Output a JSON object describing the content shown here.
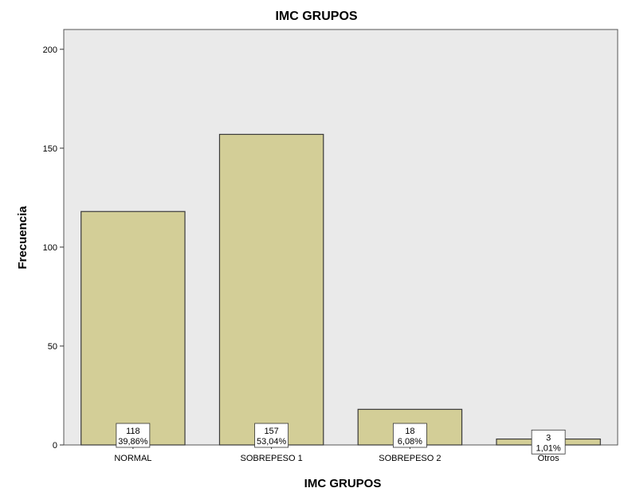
{
  "chart_data": {
    "type": "bar",
    "title": "IMC GRUPOS",
    "xlabel": "IMC GRUPOS",
    "ylabel": "Frecuencia",
    "categories": [
      "NORMAL",
      "SOBREPESO 1",
      "SOBREPESO 2",
      "Otros"
    ],
    "values": [
      118,
      157,
      18,
      3
    ],
    "percent_labels": [
      "39,86%",
      "53,04%",
      "6,08%",
      "1,01%"
    ],
    "ylim": [
      0,
      210
    ],
    "yticks": [
      0,
      50,
      100,
      150,
      200
    ],
    "grid": false,
    "colors": {
      "plot_background": "#EAEAEA",
      "bar_fill": "#D3CE97",
      "bar_stroke": "#3A3A3A",
      "label_box": "#FFFFFF"
    }
  }
}
